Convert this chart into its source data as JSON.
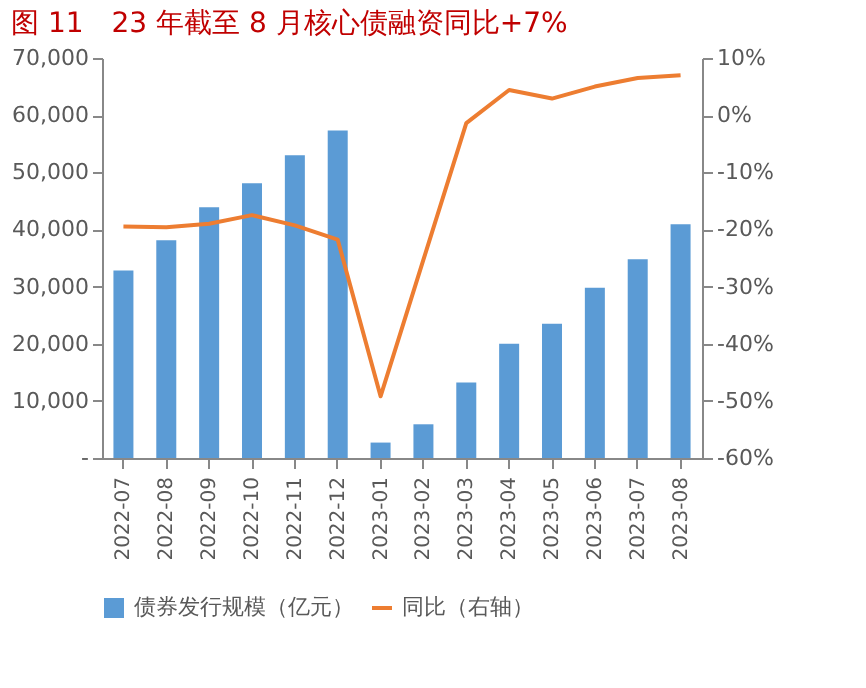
{
  "chart_data": {
    "type": "bar",
    "title": "图 11　23 年截至 8 月核心债融资同比+7%",
    "categories": [
      "2022-07",
      "2022-08",
      "2022-09",
      "2022-10",
      "2022-11",
      "2022-12",
      "2023-01",
      "2023-02",
      "2023-03",
      "2023-04",
      "2023-05",
      "2023-06",
      "2023-07",
      "2023-08"
    ],
    "series": [
      {
        "name": "债券发行规模（亿元）",
        "color": "#5b9bd5",
        "values": [
          32800,
          38100,
          43900,
          48100,
          53000,
          57300,
          2700,
          5900,
          13200,
          20000,
          23500,
          29800,
          34800,
          40900
        ]
      },
      {
        "name": "同比（右轴）",
        "type": "line",
        "axis": "y2",
        "color": "#ed7d31",
        "values": [
          -19.5,
          -19.6,
          -19.0,
          -17.5,
          -19.3,
          -21.8,
          -49.2,
          -25.3,
          -1.4,
          4.4,
          2.9,
          5.0,
          6.5,
          7.0
        ]
      }
    ],
    "ylim": [
      0,
      70000
    ],
    "yticks": [
      {
        "value": 0,
        "label": "-"
      },
      {
        "value": 10000,
        "label": "10,000"
      },
      {
        "value": 20000,
        "label": "20,000"
      },
      {
        "value": 30000,
        "label": "30,000"
      },
      {
        "value": 40000,
        "label": "40,000"
      },
      {
        "value": 50000,
        "label": "50,000"
      },
      {
        "value": 60000,
        "label": "60,000"
      },
      {
        "value": 70000,
        "label": "70,000"
      }
    ],
    "y2lim": [
      -60,
      10
    ],
    "y2ticks": [
      {
        "value": -60,
        "label": "-60%"
      },
      {
        "value": -50,
        "label": "-50%"
      },
      {
        "value": -40,
        "label": "-40%"
      },
      {
        "value": -30,
        "label": "-30%"
      },
      {
        "value": -20,
        "label": "-20%"
      },
      {
        "value": -10,
        "label": "-10%"
      },
      {
        "value": 0,
        "label": "0%"
      },
      {
        "value": 10,
        "label": "10%"
      }
    ],
    "legend": "bottom",
    "grid": false
  }
}
